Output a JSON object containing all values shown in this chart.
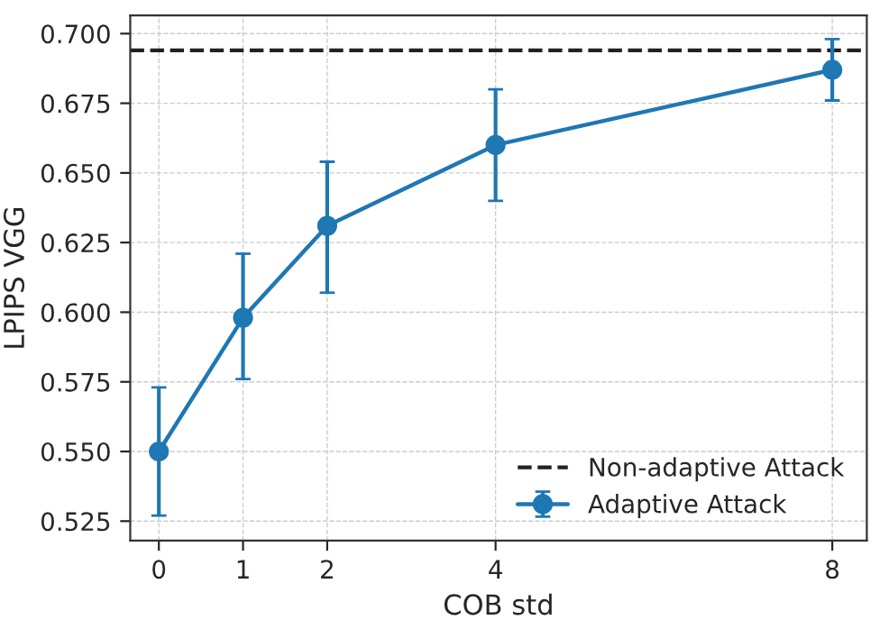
{
  "chart_data": {
    "type": "line",
    "xlabel": "COB std",
    "ylabel": "LPIPS VGG",
    "x": [
      0,
      1,
      2,
      4,
      8
    ],
    "series": [
      {
        "name": "Adaptive Attack",
        "color": "#1f77b4",
        "values": [
          0.55,
          0.598,
          0.631,
          0.66,
          0.687
        ],
        "errors": [
          [
            0.527,
            0.573
          ],
          [
            0.576,
            0.621
          ],
          [
            0.607,
            0.654
          ],
          [
            0.64,
            0.68
          ],
          [
            0.676,
            0.698
          ]
        ]
      }
    ],
    "ref_lines": [
      {
        "axis": "y",
        "value": 0.694,
        "label": "Non-adaptive Attack",
        "color": "#222222",
        "line_style": "dashed"
      }
    ],
    "xlim": [
      -0.34,
      8.41
    ],
    "xticks": [
      0,
      1,
      2,
      4,
      8
    ],
    "ylim": [
      0.518,
      0.7065
    ],
    "yticks": [
      {
        "value": 0.525,
        "label": "0.525"
      },
      {
        "value": 0.55,
        "label": "0.550"
      },
      {
        "value": 0.575,
        "label": "0.575"
      },
      {
        "value": 0.6,
        "label": "0.600"
      },
      {
        "value": 0.625,
        "label": "0.625"
      },
      {
        "value": 0.65,
        "label": "0.650"
      },
      {
        "value": 0.675,
        "label": "0.675"
      },
      {
        "value": 0.7,
        "label": "0.700"
      }
    ],
    "grid": true,
    "legend": "bottom right",
    "marker": "circle",
    "line_style": "solid"
  }
}
